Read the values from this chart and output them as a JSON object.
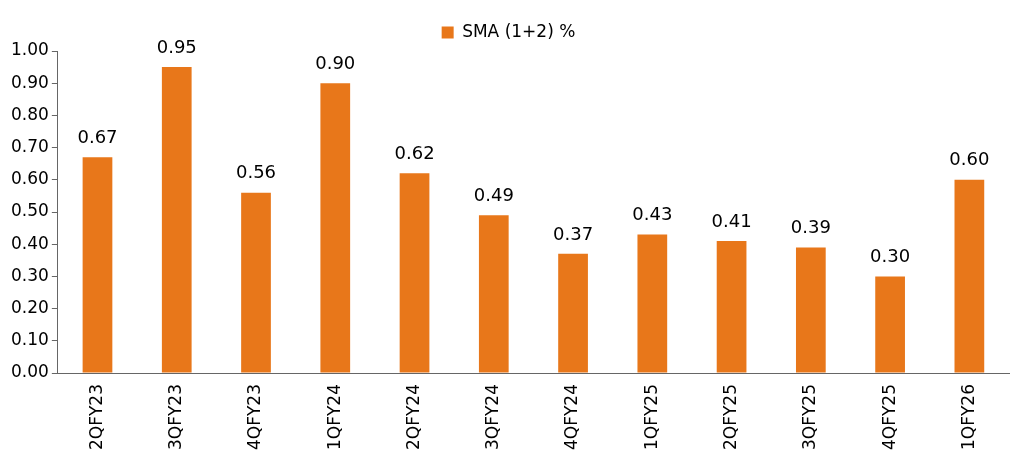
{
  "chart_data": {
    "type": "bar",
    "categories": [
      "2QFY23",
      "3QFY23",
      "4QFY23",
      "1QFY24",
      "2QFY24",
      "3QFY24",
      "4QFY24",
      "1QFY25",
      "2QFY25",
      "3QFY25",
      "4QFY25",
      "1QFY26"
    ],
    "series": [
      {
        "name": "SMA (1+2) %",
        "color": "#e8771a",
        "values": [
          0.67,
          0.95,
          0.56,
          0.9,
          0.62,
          0.49,
          0.37,
          0.43,
          0.41,
          0.39,
          0.3,
          0.6
        ],
        "value_labels": [
          "0.67",
          "0.95",
          "0.56",
          "0.90",
          "0.62",
          "0.49",
          "0.37",
          "0.43",
          "0.41",
          "0.39",
          "0.30",
          "0.60"
        ]
      }
    ],
    "ylim": [
      0,
      1
    ],
    "yticks": [
      {
        "value": 0,
        "label": "0.00"
      },
      {
        "value": 0.1,
        "label": "0.10"
      },
      {
        "value": 0.2,
        "label": "0.20"
      },
      {
        "value": 0.3,
        "label": "0.30"
      },
      {
        "value": 0.4,
        "label": "0.40"
      },
      {
        "value": 0.5,
        "label": "0.50"
      },
      {
        "value": 0.6,
        "label": "0.60"
      },
      {
        "value": 0.7,
        "label": "0.70"
      },
      {
        "value": 0.8,
        "label": "0.80"
      },
      {
        "value": 0.9,
        "label": "0.90"
      },
      {
        "value": 1,
        "label": "1.00"
      }
    ],
    "grid": false,
    "legend": "top"
  }
}
